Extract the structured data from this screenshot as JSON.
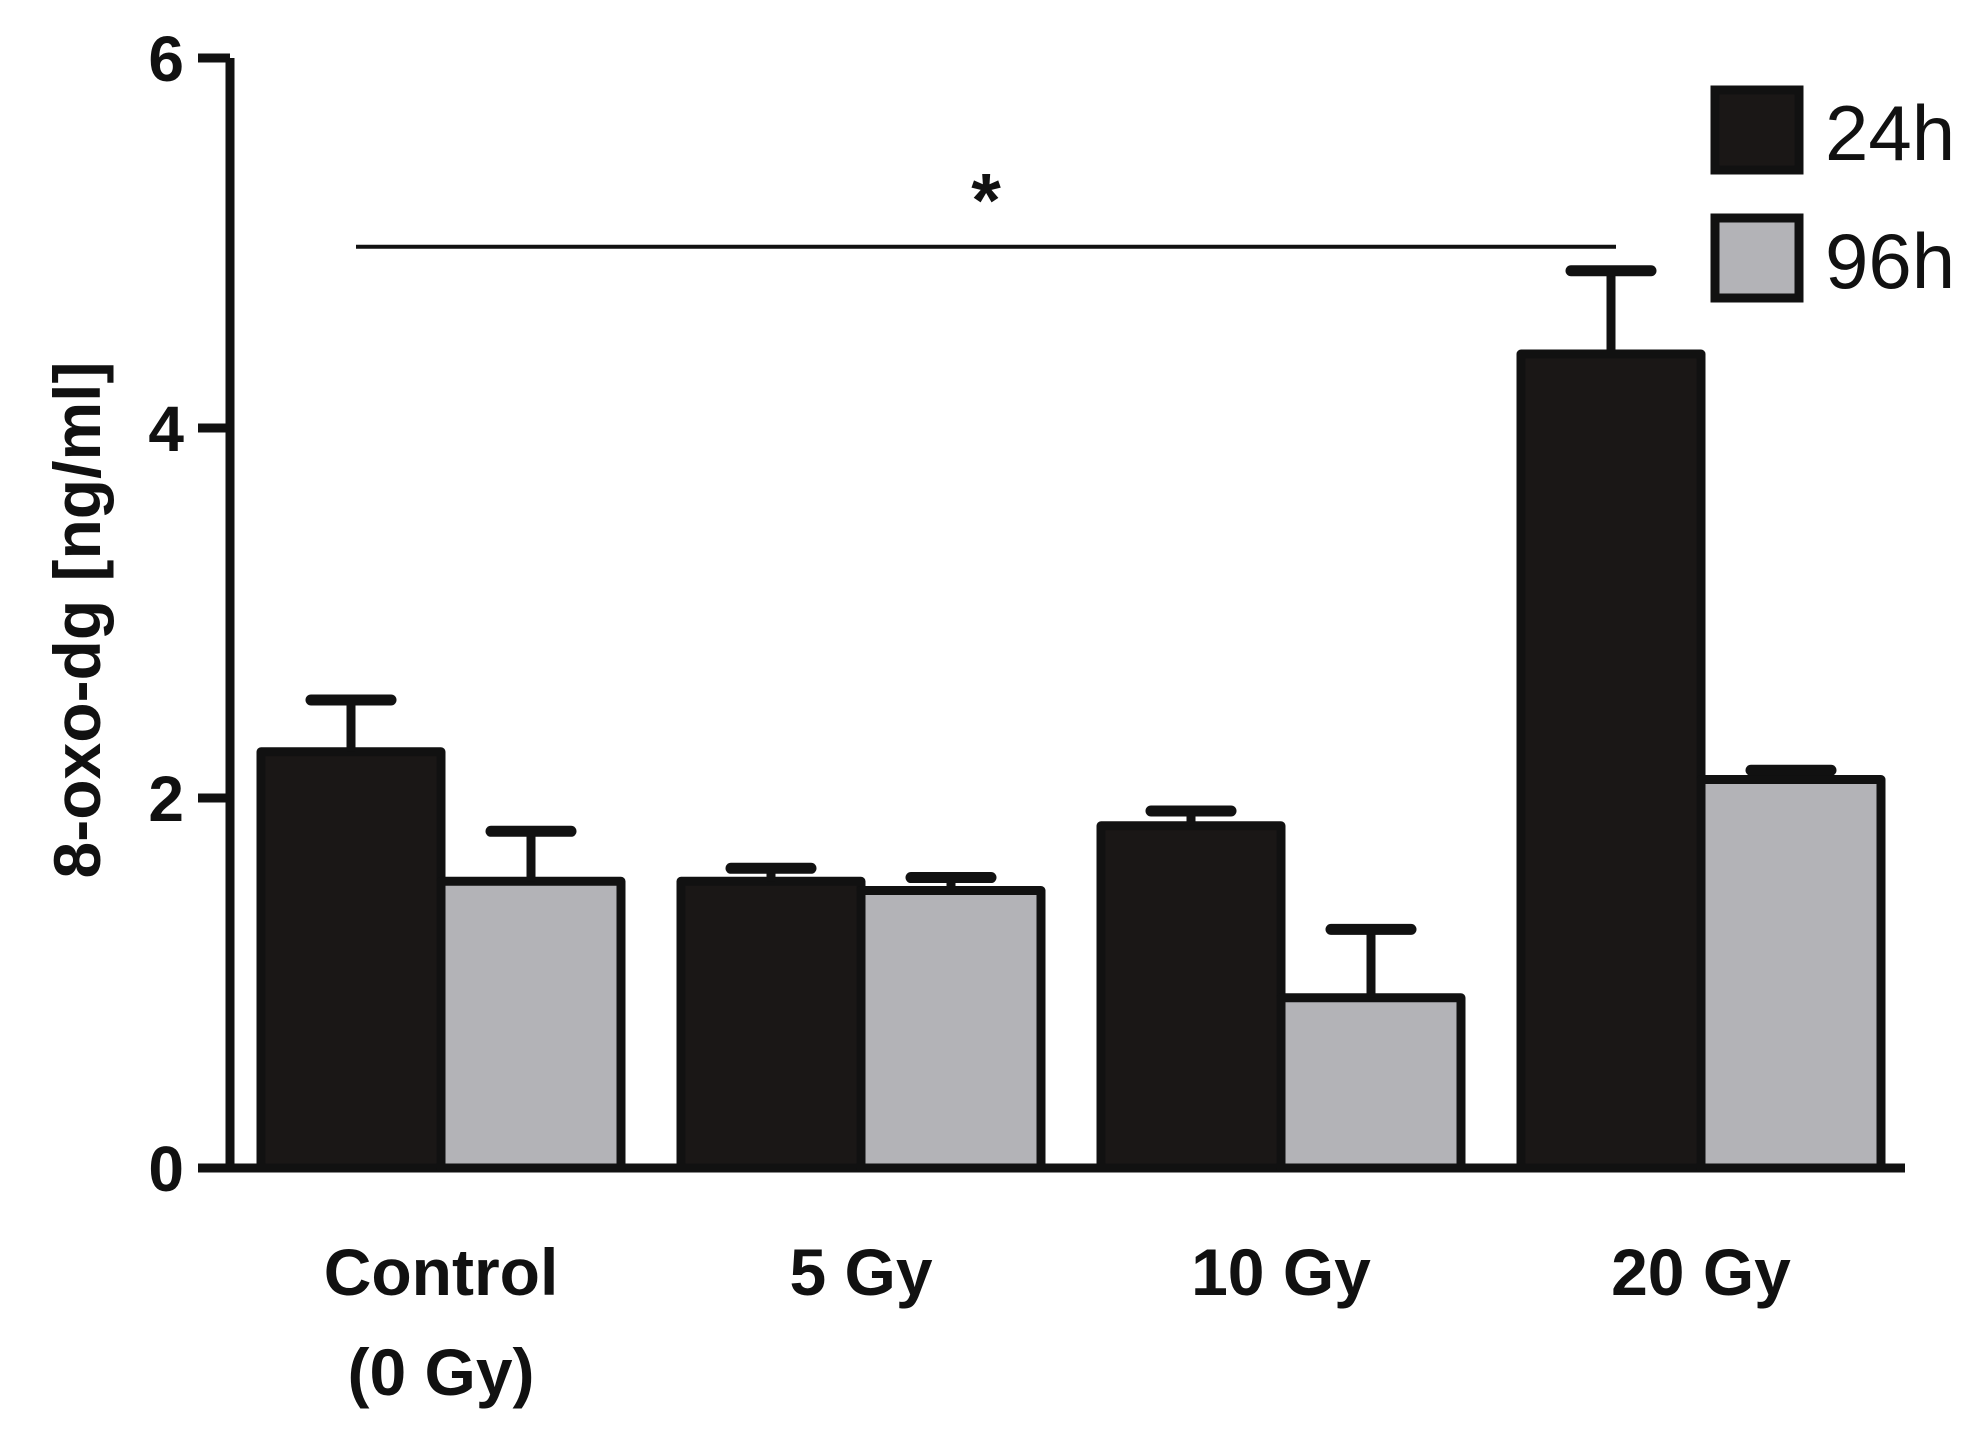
{
  "chart_data": {
    "type": "bar",
    "title": "",
    "xlabel": "",
    "ylabel": "8-oxo-dg [ng/ml]",
    "ylim": [
      0,
      6
    ],
    "yticks": [
      0,
      2,
      4,
      6
    ],
    "grid": false,
    "legend_position": "top-right",
    "categories": [
      {
        "line1": "Control",
        "line2": "(0 Gy)"
      },
      {
        "line1": "5 Gy",
        "line2": ""
      },
      {
        "line1": "10 Gy",
        "line2": ""
      },
      {
        "line1": "20 Gy",
        "line2": ""
      }
    ],
    "series": [
      {
        "name": "24h",
        "color": "#1a1716",
        "values": [
          2.25,
          1.55,
          1.85,
          4.4
        ],
        "errors": [
          0.28,
          0.07,
          0.08,
          0.45
        ]
      },
      {
        "name": "96h",
        "color": "#b3b3b7",
        "values": [
          1.55,
          1.5,
          0.92,
          2.1
        ],
        "errors": [
          0.27,
          0.07,
          0.37,
          0.05
        ]
      }
    ],
    "significance": {
      "label": "*",
      "from_category": 0,
      "to_category": 3,
      "y": 4.98
    }
  }
}
